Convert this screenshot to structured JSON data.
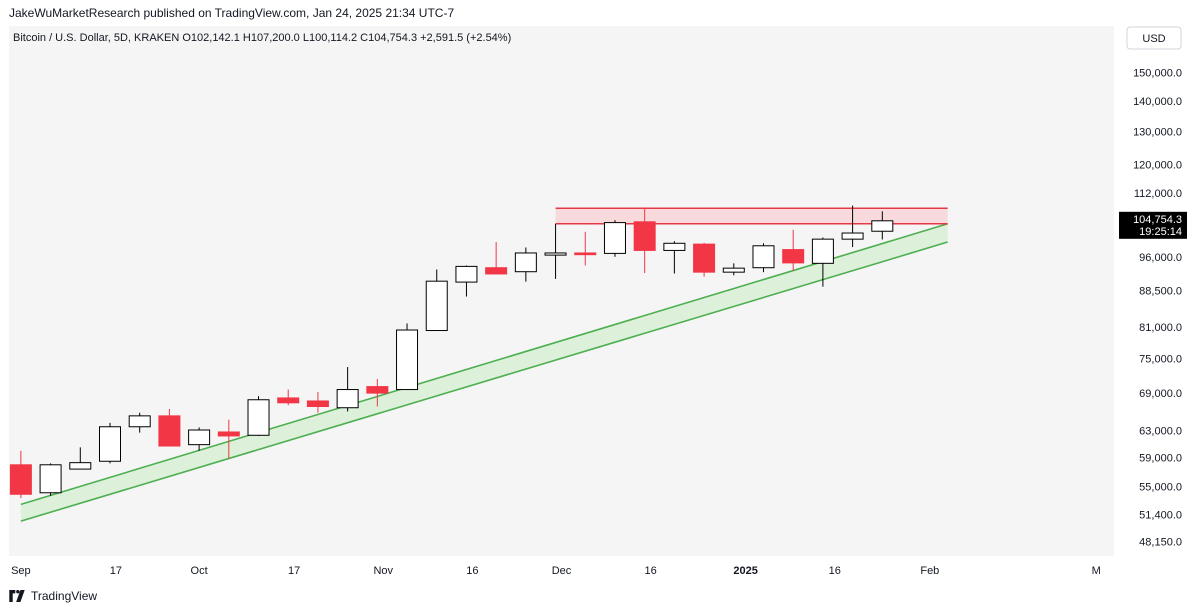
{
  "header": {
    "published": "JakeWuMarketResearch published on TradingView.com, Jan 24, 2025 21:34 UTC-7"
  },
  "footer": {
    "brand": "TradingView",
    "logo_icon": "tradingview-logo-icon"
  },
  "colors": {
    "up_body": "#ffffff",
    "up_border": "#000000",
    "down": "#f23645",
    "channel_line": "#4caf50",
    "channel_fill": "#d8eed5",
    "resistance_line": "#e53949",
    "resistance_fill": "#f8d5d8",
    "price_tag_bg": "#000000",
    "plot_bg": "#f5f5f5"
  },
  "chart_data": {
    "type": "candlestick",
    "title": "Bitcoin / U.S. Dollar, 5D, KRAKEN",
    "symbol": "Bitcoin / U.S. Dollar",
    "interval": "5D",
    "exchange": "KRAKEN",
    "ohlc_legend": {
      "open_label": "O",
      "open": "102,142.1",
      "high_label": "H",
      "high": "107,200.0",
      "low_label": "L",
      "low": "100,114.2",
      "close_label": "C",
      "close": "104,754.3",
      "change": "+2,591.5 (+2.54%)"
    },
    "currency_label": "USD",
    "y_scale": "log",
    "ylim": [
      46500,
      160000
    ],
    "xlim": [
      "2024-08-30",
      "2025-03-04"
    ],
    "y_ticks": [
      {
        "value": 150000,
        "label": "150,000.0"
      },
      {
        "value": 140000,
        "label": "140,000.0"
      },
      {
        "value": 130000,
        "label": "130,000.0"
      },
      {
        "value": 120000,
        "label": "120,000.0"
      },
      {
        "value": 112000,
        "label": "112,000.0"
      },
      {
        "value": 96000,
        "label": "96,000.0"
      },
      {
        "value": 88500,
        "label": "88,500.0"
      },
      {
        "value": 81000,
        "label": "81,000.0"
      },
      {
        "value": 75000,
        "label": "75,000.0"
      },
      {
        "value": 69000,
        "label": "69,000.0"
      },
      {
        "value": 63000,
        "label": "63,000.0"
      },
      {
        "value": 59000,
        "label": "59,000.0"
      },
      {
        "value": 55000,
        "label": "55,000.0"
      },
      {
        "value": 51400,
        "label": "51,400.0"
      },
      {
        "value": 48150,
        "label": "48,150.0"
      }
    ],
    "x_ticks": [
      {
        "date": "2024-09-01",
        "label": "Sep",
        "bold": false
      },
      {
        "date": "2024-09-17",
        "label": "17",
        "bold": false
      },
      {
        "date": "2024-10-01",
        "label": "Oct",
        "bold": false
      },
      {
        "date": "2024-10-17",
        "label": "17",
        "bold": false
      },
      {
        "date": "2024-11-01",
        "label": "Nov",
        "bold": false
      },
      {
        "date": "2024-11-16",
        "label": "16",
        "bold": false
      },
      {
        "date": "2024-12-01",
        "label": "Dec",
        "bold": false
      },
      {
        "date": "2024-12-16",
        "label": "16",
        "bold": false
      },
      {
        "date": "2025-01-01",
        "label": "2025",
        "bold": true
      },
      {
        "date": "2025-01-16",
        "label": "16",
        "bold": false
      },
      {
        "date": "2025-02-01",
        "label": "Feb",
        "bold": false
      },
      {
        "date": "2025-03-01",
        "label": "M",
        "bold": false
      }
    ],
    "last_price": {
      "value": 104754.3,
      "label": "104,754.3",
      "countdown": "19:25:14"
    },
    "candles": [
      {
        "date": "2024-09-01",
        "open": 58000,
        "high": 60000,
        "low": 53500,
        "close": 54000
      },
      {
        "date": "2024-09-06",
        "open": 54200,
        "high": 58200,
        "low": 53800,
        "close": 58000
      },
      {
        "date": "2024-09-11",
        "open": 57400,
        "high": 60500,
        "low": 57400,
        "close": 58300
      },
      {
        "date": "2024-09-16",
        "open": 58500,
        "high": 64200,
        "low": 58200,
        "close": 63600
      },
      {
        "date": "2024-09-21",
        "open": 63600,
        "high": 65800,
        "low": 62700,
        "close": 65300
      },
      {
        "date": "2024-09-26",
        "open": 65300,
        "high": 66400,
        "low": 60800,
        "close": 60700
      },
      {
        "date": "2024-10-01",
        "open": 60900,
        "high": 63500,
        "low": 60000,
        "close": 63100
      },
      {
        "date": "2024-10-06",
        "open": 62800,
        "high": 64700,
        "low": 58900,
        "close": 62200
      },
      {
        "date": "2024-10-11",
        "open": 62300,
        "high": 68500,
        "low": 62200,
        "close": 67900
      },
      {
        "date": "2024-10-16",
        "open": 68200,
        "high": 69600,
        "low": 67000,
        "close": 67400
      },
      {
        "date": "2024-10-21",
        "open": 67700,
        "high": 69200,
        "low": 65800,
        "close": 66800
      },
      {
        "date": "2024-10-26",
        "open": 66600,
        "high": 73500,
        "low": 66000,
        "close": 69600
      },
      {
        "date": "2024-10-31",
        "open": 70100,
        "high": 71400,
        "low": 66800,
        "close": 69000
      },
      {
        "date": "2024-11-05",
        "open": 69600,
        "high": 81700,
        "low": 69600,
        "close": 80400
      },
      {
        "date": "2024-11-10",
        "open": 80300,
        "high": 93100,
        "low": 80300,
        "close": 90500
      },
      {
        "date": "2024-11-15",
        "open": 90300,
        "high": 94000,
        "low": 87200,
        "close": 93800
      },
      {
        "date": "2024-11-20",
        "open": 93500,
        "high": 99500,
        "low": 92000,
        "close": 92100
      },
      {
        "date": "2024-11-25",
        "open": 92600,
        "high": 98200,
        "low": 90400,
        "close": 96900
      },
      {
        "date": "2024-11-30",
        "open": 96400,
        "high": 104000,
        "low": 91000,
        "close": 96900
      },
      {
        "date": "2024-12-05",
        "open": 96900,
        "high": 102000,
        "low": 94000,
        "close": 96500
      },
      {
        "date": "2024-12-10",
        "open": 96800,
        "high": 104900,
        "low": 96000,
        "close": 104300
      },
      {
        "date": "2024-12-15",
        "open": 104500,
        "high": 108200,
        "low": 92300,
        "close": 97500
      },
      {
        "date": "2024-12-20",
        "open": 97500,
        "high": 99700,
        "low": 92200,
        "close": 99200
      },
      {
        "date": "2024-12-25",
        "open": 99000,
        "high": 99300,
        "low": 91500,
        "close": 92500
      },
      {
        "date": "2024-12-30",
        "open": 92500,
        "high": 94500,
        "low": 91800,
        "close": 93400
      },
      {
        "date": "2025-01-04",
        "open": 93500,
        "high": 99200,
        "low": 92500,
        "close": 98600
      },
      {
        "date": "2025-01-09",
        "open": 97700,
        "high": 102500,
        "low": 92800,
        "close": 94600
      },
      {
        "date": "2025-01-14",
        "open": 94500,
        "high": 100600,
        "low": 89300,
        "close": 100200
      },
      {
        "date": "2025-01-19",
        "open": 100200,
        "high": 108700,
        "low": 98300,
        "close": 101700
      },
      {
        "date": "2025-01-24",
        "open": 102142.1,
        "high": 107200,
        "low": 100114.2,
        "close": 104754.3
      }
    ],
    "annotations": {
      "resistance_zone": {
        "from": "2024-11-30",
        "to": "2025-02-04",
        "upper": 108000,
        "lower": 104000
      },
      "uptrend_channel": {
        "upper": [
          {
            "date": "2024-09-01",
            "price": 52700
          },
          {
            "date": "2025-02-04",
            "price": 104000
          }
        ],
        "lower": [
          {
            "date": "2024-09-01",
            "price": 50600
          },
          {
            "date": "2025-02-04",
            "price": 99500
          }
        ]
      }
    }
  }
}
